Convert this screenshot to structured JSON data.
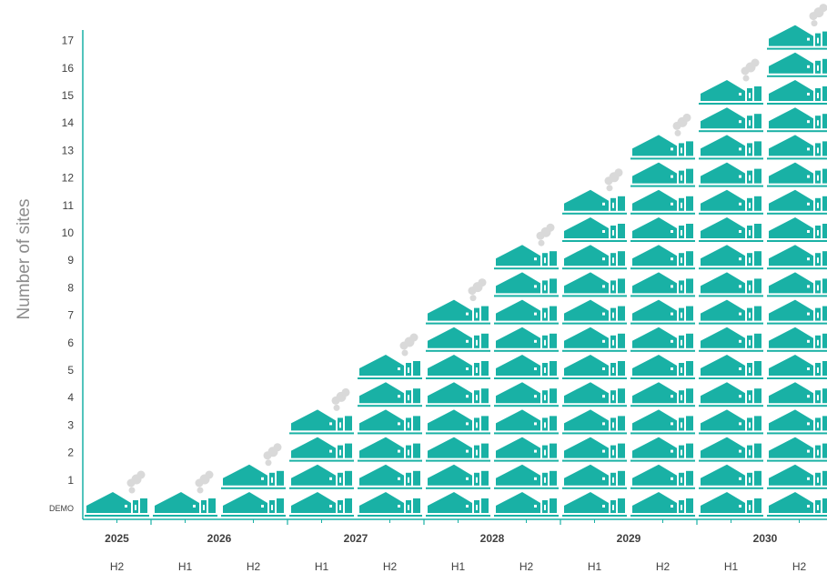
{
  "chart_data": {
    "type": "bar",
    "title": "",
    "xlabel": "",
    "ylabel": "Number of sites",
    "y_ticks": [
      "DEMO",
      "1",
      "2",
      "3",
      "4",
      "5",
      "6",
      "7",
      "8",
      "9",
      "10",
      "11",
      "12",
      "13",
      "14",
      "15",
      "16",
      "17"
    ],
    "years": [
      "2025",
      "2026",
      "2027",
      "2028",
      "2029",
      "2030"
    ],
    "categories": [
      {
        "year": "2025",
        "half": "H2"
      },
      {
        "year": "2026",
        "half": "H1"
      },
      {
        "year": "2026",
        "half": "H2"
      },
      {
        "year": "2027",
        "half": "H1"
      },
      {
        "year": "2027",
        "half": "H2"
      },
      {
        "year": "2028",
        "half": "H1"
      },
      {
        "year": "2028",
        "half": "H2"
      },
      {
        "year": "2029",
        "half": "H1"
      },
      {
        "year": "2029",
        "half": "H2"
      },
      {
        "year": "2030",
        "half": "H1"
      },
      {
        "year": "2030",
        "half": "H2"
      }
    ],
    "values": [
      0,
      0,
      1,
      3,
      5,
      7,
      9,
      11,
      13,
      15,
      17
    ],
    "ylim": [
      "DEMO",
      "17"
    ],
    "grid": false,
    "legend": "none",
    "colors": {
      "site_icon": "#19b1a5",
      "smoke": "#d9d9d9",
      "axis": "#19b1a5",
      "text": "#404040",
      "ylabel": "#8c8c8c"
    },
    "icon": "factory-icon"
  }
}
